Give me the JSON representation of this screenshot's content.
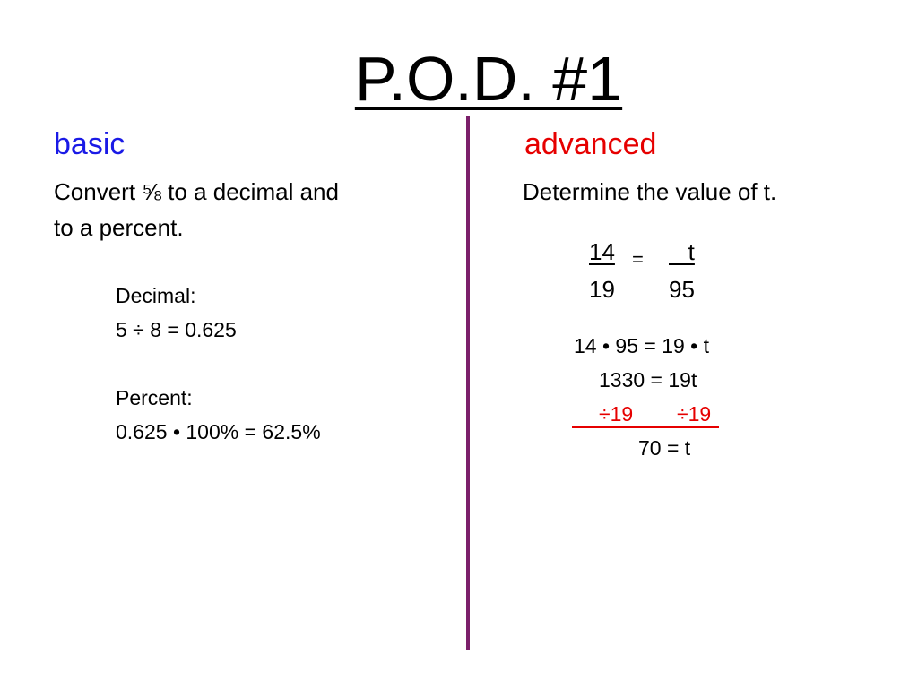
{
  "title": "P.O.D. #1",
  "colors": {
    "basic_heading": "#1a1ae6",
    "advanced_heading": "#e60000",
    "divider": "#7b1f6a",
    "division_step": "#e60000"
  },
  "basic": {
    "heading": "basic",
    "prompt_line1": "Convert ⅝ to a decimal and",
    "prompt_line2": "to a percent.",
    "decimal_label": "Decimal:",
    "decimal_calc": "5 ÷ 8 = 0.625",
    "percent_label": "Percent:",
    "percent_calc": "0.625 • 100% = 62.5%"
  },
  "advanced": {
    "heading": "advanced",
    "prompt": "Determine the value of t.",
    "proportion": {
      "left_num": "14",
      "left_den": "19",
      "equals": "=",
      "right_num": "t",
      "right_den": "95"
    },
    "steps": {
      "step1": "14 • 95 = 19 • t",
      "step2": "1330 = 19t",
      "step3_left": "÷19",
      "step3_right": "÷19",
      "step4": "70 = t"
    }
  }
}
